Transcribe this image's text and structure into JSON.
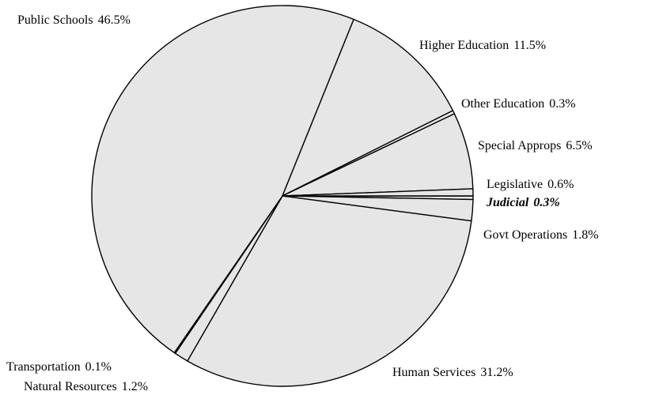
{
  "chart_data": {
    "type": "pie",
    "slices": [
      {
        "label": "Public Schools",
        "value": 46.5,
        "value_text": "46.5%"
      },
      {
        "label": "Higher Education",
        "value": 11.5,
        "value_text": "11.5%"
      },
      {
        "label": "Other Education",
        "value": 0.3,
        "value_text": "0.3%"
      },
      {
        "label": "Special Approps",
        "value": 6.5,
        "value_text": "6.5%"
      },
      {
        "label": "Legislative",
        "value": 0.6,
        "value_text": "0.6%"
      },
      {
        "label": "Judicial",
        "value": 0.3,
        "value_text": "0.3%",
        "highlighted": true
      },
      {
        "label": "Govt Operations",
        "value": 1.8,
        "value_text": "1.8%"
      },
      {
        "label": "Human Services",
        "value": 31.2,
        "value_text": "31.2%"
      },
      {
        "label": "Natural Resources",
        "value": 1.2,
        "value_text": "1.2%"
      },
      {
        "label": "Transportation",
        "value": 0.1,
        "value_text": "0.1%"
      }
    ],
    "slice_color": "#e6e6e6",
    "stroke_color": "#000000"
  }
}
